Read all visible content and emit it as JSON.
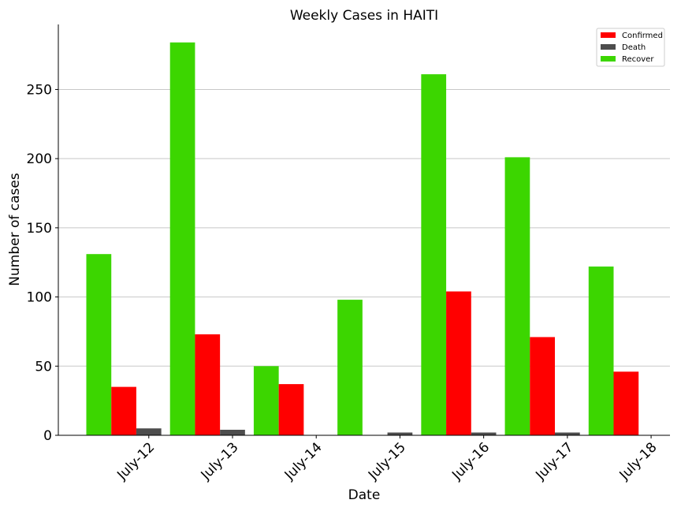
{
  "chart_data": {
    "type": "bar",
    "title": "Weekly Cases in HAITI",
    "xlabel": "Date",
    "ylabel": "Number of cases",
    "categories": [
      "July-12",
      "July-13",
      "July-14",
      "July-15",
      "July-16",
      "July-17",
      "July-18"
    ],
    "yticks": [
      0,
      50,
      100,
      150,
      200,
      250
    ],
    "ylim": [
      0,
      297
    ],
    "grid": "horizontal",
    "legend_position": "top-right",
    "bar_order": [
      "Recover",
      "Confirmed",
      "Death"
    ],
    "legend_order": [
      "Confirmed",
      "Death",
      "Recover"
    ],
    "series": [
      {
        "name": "Confirmed",
        "color": "#ff0000",
        "values": [
          35,
          73,
          37,
          0,
          104,
          71,
          46
        ]
      },
      {
        "name": "Death",
        "color": "#4d4d4d",
        "values": [
          5,
          4,
          0,
          2,
          2,
          2,
          0
        ]
      },
      {
        "name": "Recover",
        "color": "#3cd600",
        "values": [
          131,
          284,
          50,
          98,
          261,
          201,
          122
        ]
      }
    ]
  }
}
